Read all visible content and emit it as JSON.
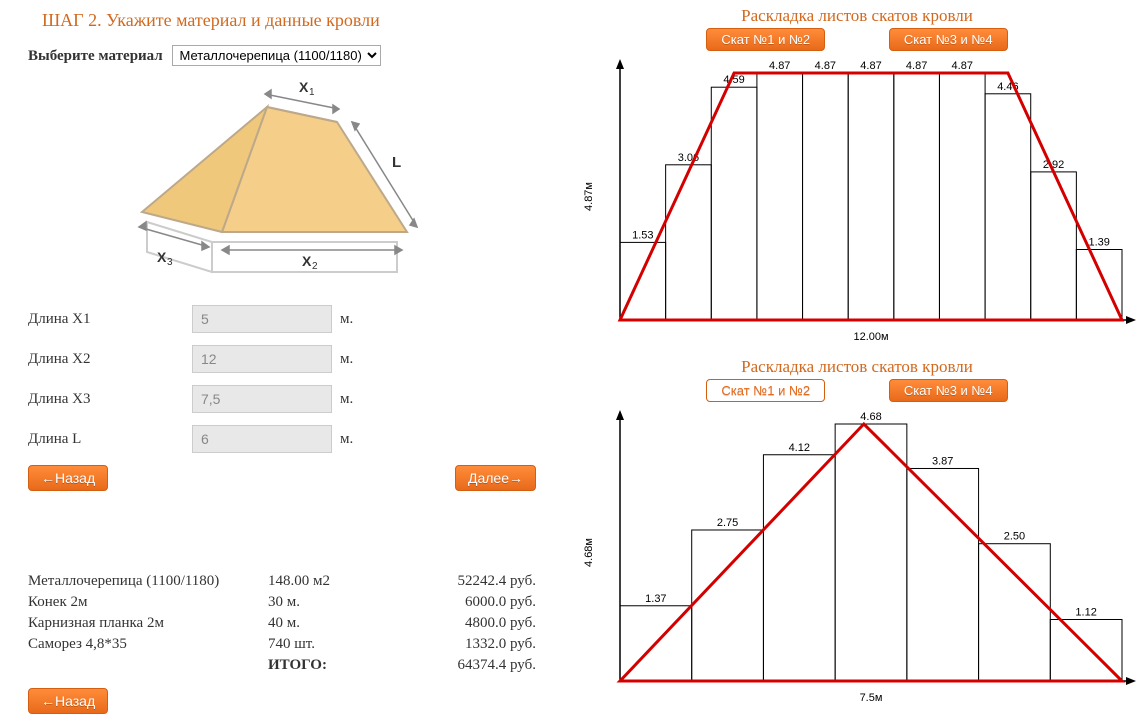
{
  "colors": {
    "accent": "#D2691E",
    "button_bg_top": "#ff8c3a",
    "button_bg_bot": "#e86a1a",
    "button_border": "#d45f10",
    "roof_fill": "#f5cf89",
    "roof_stroke": "#bda98a",
    "axis": "#000000",
    "bar_stroke": "#000000",
    "overlay_line": "#d40000",
    "input_bg": "#e8e8e8",
    "input_text": "#888888"
  },
  "step_title": "ШАГ 2. Укажите материал и данные кровли",
  "material": {
    "label": "Выберите материал",
    "selected": "Металлочерепица (1100/1180)",
    "options": [
      "Металлочерепица (1100/1180)"
    ]
  },
  "roof_diagram": {
    "labels": {
      "x1": "X₁",
      "x2": "X₂",
      "x3": "X₃",
      "L": "L"
    }
  },
  "inputs": [
    {
      "label": "Длина X1",
      "value": "5",
      "unit": "м."
    },
    {
      "label": "Длина X2",
      "value": "12",
      "unit": "м."
    },
    {
      "label": "Длина X3",
      "value": "7,5",
      "unit": "м."
    },
    {
      "label": "Длина L",
      "value": "6",
      "unit": "м."
    }
  ],
  "nav": {
    "back": "←Назад",
    "next": "Далее→"
  },
  "results": {
    "rows": [
      {
        "name": "Металлочерепица (1100/1180)",
        "qty": "148.00 м2",
        "price": "52242.4 руб."
      },
      {
        "name": "Конек 2м",
        "qty": "30 м.",
        "price": "6000.0 руб."
      },
      {
        "name": "Карнизная планка 2м",
        "qty": "40 м.",
        "price": "4800.0 руб."
      },
      {
        "name": "Саморез 4,8*35",
        "qty": "740 шт.",
        "price": "1332.0 руб."
      }
    ],
    "total_label": "ИТОГО:",
    "total_value": "64374.4 руб."
  },
  "chart_title": "Раскладка листов скатов кровли",
  "tabs": {
    "a": "Скат №1 и №2",
    "b": "Скат №3 и №4"
  },
  "chart1": {
    "type": "bar-with-trapezoid-overlay",
    "y_axis_label": "4.87м",
    "x_axis_label": "12.00м",
    "y_max": 4.87,
    "bar_values": [
      1.53,
      3.06,
      4.59,
      4.87,
      4.87,
      4.87,
      4.87,
      4.87,
      4.46,
      2.92,
      1.39
    ],
    "overlay": {
      "shape": "trapezoid",
      "bottom_x": [
        0,
        11
      ],
      "top_x": [
        2.5,
        8.5
      ],
      "top_y": 4.87
    },
    "label_fontsize": 11,
    "line_width": 3
  },
  "chart2": {
    "type": "bar-with-triangle-overlay",
    "y_axis_label": "4.68м",
    "x_axis_label": "7.5м",
    "y_max": 4.68,
    "bar_values": [
      1.37,
      2.75,
      4.12,
      4.68,
      3.87,
      2.5,
      1.12
    ],
    "overlay": {
      "shape": "triangle",
      "base_x": [
        0,
        7
      ],
      "apex_x": 3.4,
      "apex_y": 4.68
    },
    "label_fontsize": 11,
    "line_width": 3
  }
}
